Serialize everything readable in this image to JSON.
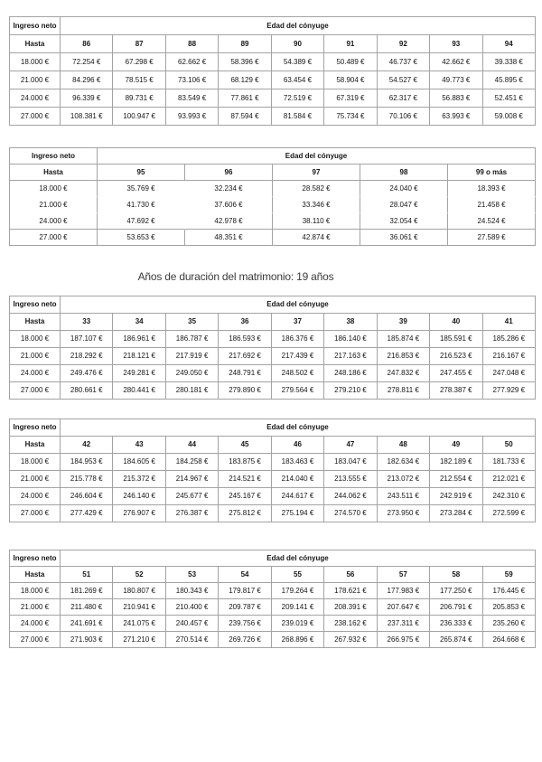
{
  "title": "Años de duración del matrimonio: 19 años",
  "labels": {
    "income": "Ingreso neto",
    "age": "Edad del cónyuge",
    "upto": "Hasta"
  },
  "colors": {
    "border": "#a3a3a3"
  },
  "tables": [
    {
      "ages": [
        "86",
        "87",
        "88",
        "89",
        "90",
        "91",
        "92",
        "93",
        "94"
      ],
      "rows": [
        {
          "income": "18.000 €",
          "values": [
            "72.254 €",
            "67.298 €",
            "62.662 €",
            "58.396 €",
            "54.389 €",
            "50.489 €",
            "46.737 €",
            "42.662 €",
            "39.338 €"
          ]
        },
        {
          "income": "21.000 €",
          "values": [
            "84.296 €",
            "78.515 €",
            "73.106 €",
            "68.129 €",
            "63.454 €",
            "58.904 €",
            "54.527 €",
            "49.773 €",
            "45.895 €"
          ]
        },
        {
          "income": "24.000 €",
          "values": [
            "96.339 €",
            "89.731 €",
            "83.549 €",
            "77.861 €",
            "72.519 €",
            "67.319 €",
            "62.317 €",
            "56.883 €",
            "52.451 €"
          ]
        },
        {
          "income": "27.000 €",
          "values": [
            "108.381 €",
            "100.947 €",
            "93.993 €",
            "87.594 €",
            "81.584 €",
            "75.734 €",
            "70.106 €",
            "63.993 €",
            "59.008 €"
          ]
        }
      ]
    },
    {
      "ages": [
        "95",
        "96",
        "97",
        "98",
        "99 o más"
      ],
      "rows": [
        {
          "income": "18.000 €",
          "values": [
            "35.769 €",
            "32.234 €",
            "28.582 €",
            "24.040 €",
            "18.393 €"
          ]
        },
        {
          "income": "21.000 €",
          "values": [
            "41.730 €",
            "37.606 €",
            "33.346 €",
            "28.047 €",
            "21.458 €"
          ]
        },
        {
          "income": "24.000 €",
          "values": [
            "47.692 €",
            "42.978 €",
            "38.110 €",
            "32.054 €",
            "24.524 €"
          ]
        },
        {
          "income": "27.000 €",
          "values": [
            "53.653 €",
            "48.351 €",
            "42.874 €",
            "36.061 €",
            "27.589 €"
          ]
        }
      ]
    },
    {
      "ages": [
        "33",
        "34",
        "35",
        "36",
        "37",
        "38",
        "39",
        "40",
        "41"
      ],
      "rows": [
        {
          "income": "18.000 €",
          "values": [
            "187.107 €",
            "186.961 €",
            "186.787 €",
            "186.593 €",
            "186.376 €",
            "186.140 €",
            "185.874 €",
            "185.591 €",
            "185.286 €"
          ]
        },
        {
          "income": "21.000 €",
          "values": [
            "218.292 €",
            "218.121 €",
            "217.919 €",
            "217.692 €",
            "217.439 €",
            "217.163 €",
            "216.853 €",
            "216.523 €",
            "216.167 €"
          ]
        },
        {
          "income": "24.000 €",
          "values": [
            "249.476 €",
            "249.281 €",
            "249.050 €",
            "248.791 €",
            "248.502 €",
            "248.186 €",
            "247.832 €",
            "247.455 €",
            "247.048 €"
          ]
        },
        {
          "income": "27.000 €",
          "values": [
            "280.661 €",
            "280.441 €",
            "280.181 €",
            "279.890 €",
            "279.564 €",
            "279.210 €",
            "278.811 €",
            "278.387 €",
            "277.929 €"
          ]
        }
      ]
    },
    {
      "ages": [
        "42",
        "43",
        "44",
        "45",
        "46",
        "47",
        "48",
        "49",
        "50"
      ],
      "rows": [
        {
          "income": "18.000 €",
          "values": [
            "184.953 €",
            "184.605 €",
            "184.258 €",
            "183.875 €",
            "183.463 €",
            "183.047 €",
            "182.634 €",
            "182.189 €",
            "181.733 €"
          ]
        },
        {
          "income": "21.000 €",
          "values": [
            "215.778 €",
            "215.372 €",
            "214.967 €",
            "214.521 €",
            "214.040 €",
            "213.555 €",
            "213.072 €",
            "212.554 €",
            "212.021 €"
          ]
        },
        {
          "income": "24.000 €",
          "values": [
            "246.604 €",
            "246.140 €",
            "245.677 €",
            "245.167 €",
            "244.617 €",
            "244.062 €",
            "243.511 €",
            "242.919 €",
            "242.310 €"
          ]
        },
        {
          "income": "27.000 €",
          "values": [
            "277.429 €",
            "276.907 €",
            "276.387 €",
            "275.812 €",
            "275.194 €",
            "274.570 €",
            "273.950 €",
            "273.284 €",
            "272.599 €"
          ]
        }
      ]
    },
    {
      "ages": [
        "51",
        "52",
        "53",
        "54",
        "55",
        "56",
        "57",
        "58",
        "59"
      ],
      "rows": [
        {
          "income": "18.000 €",
          "values": [
            "181.269 €",
            "180.807 €",
            "180.343 €",
            "179.817 €",
            "179.264 €",
            "178.621 €",
            "177.983 €",
            "177.250 €",
            "176.445 €"
          ]
        },
        {
          "income": "21.000 €",
          "values": [
            "211.480 €",
            "210.941 €",
            "210.400 €",
            "209.787 €",
            "209.141 €",
            "208.391 €",
            "207.647 €",
            "206.791 €",
            "205.853 €"
          ]
        },
        {
          "income": "24.000 €",
          "values": [
            "241.691 €",
            "241.075 €",
            "240.457 €",
            "239.756 €",
            "239.019 €",
            "238.162 €",
            "237.311 €",
            "236.333 €",
            "235.260 €"
          ]
        },
        {
          "income": "27.000 €",
          "values": [
            "271.903 €",
            "271.210 €",
            "270.514 €",
            "269.726 €",
            "268.896 €",
            "267.932 €",
            "266.975 €",
            "265.874 €",
            "264.668 €"
          ]
        }
      ]
    }
  ]
}
